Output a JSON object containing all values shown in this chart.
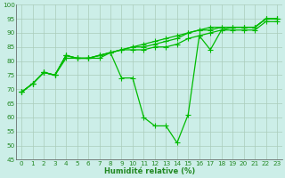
{
  "xlabel": "Humidité relative (%)",
  "background_color": "#cceee8",
  "grid_color": "#aaccbb",
  "line_color": "#00bb00",
  "xlim": [
    -0.5,
    23.5
  ],
  "ylim": [
    45,
    100
  ],
  "yticks": [
    45,
    50,
    55,
    60,
    65,
    70,
    75,
    80,
    85,
    90,
    95,
    100
  ],
  "xticks": [
    0,
    1,
    2,
    3,
    4,
    5,
    6,
    7,
    8,
    9,
    10,
    11,
    12,
    13,
    14,
    15,
    16,
    17,
    18,
    19,
    20,
    21,
    22,
    23
  ],
  "series": [
    [
      69,
      72,
      76,
      75,
      82,
      81,
      81,
      82,
      83,
      84,
      85,
      86,
      87,
      88,
      89,
      90,
      91,
      92,
      92,
      92,
      92,
      92,
      95,
      95
    ],
    [
      69,
      72,
      76,
      75,
      82,
      81,
      81,
      82,
      83,
      84,
      85,
      85,
      86,
      87,
      88,
      90,
      91,
      91,
      92,
      92,
      92,
      92,
      95,
      95
    ],
    [
      69,
      72,
      76,
      75,
      81,
      81,
      81,
      81,
      83,
      84,
      84,
      84,
      85,
      85,
      86,
      88,
      89,
      90,
      91,
      91,
      91,
      91,
      94,
      94
    ],
    [
      69,
      72,
      76,
      75,
      82,
      81,
      81,
      82,
      83,
      74,
      74,
      60,
      57,
      57,
      51,
      61,
      89,
      84,
      91,
      92,
      92,
      92,
      95,
      95
    ]
  ],
  "marker": "+",
  "markersize": 4,
  "linewidth": 0.9,
  "xlabel_fontsize": 6.0,
  "tick_fontsize": 5.2
}
